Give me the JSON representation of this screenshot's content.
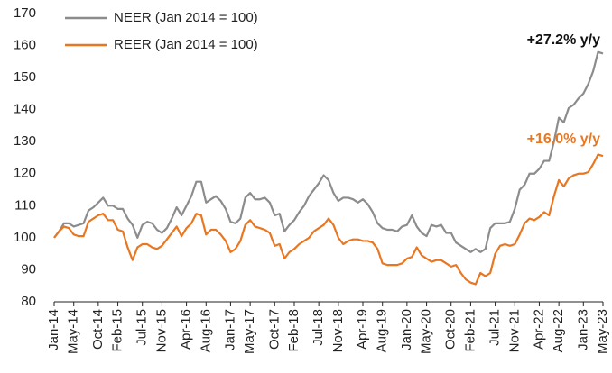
{
  "chart_data": {
    "type": "line",
    "categories": [
      "Jan-14",
      null,
      null,
      null,
      "May-14",
      null,
      null,
      null,
      null,
      "Oct-14",
      null,
      null,
      null,
      "Feb-15",
      null,
      null,
      null,
      null,
      "Jul-15",
      null,
      null,
      null,
      "Nov-15",
      null,
      null,
      null,
      null,
      "Apr-16",
      null,
      null,
      null,
      "Aug-16",
      null,
      null,
      null,
      null,
      "Jan-17",
      null,
      null,
      null,
      "May-17",
      null,
      null,
      null,
      null,
      "Oct-17",
      null,
      null,
      null,
      "Feb-18",
      null,
      null,
      null,
      null,
      "Jul-18",
      null,
      null,
      null,
      "Nov-18",
      null,
      null,
      null,
      null,
      "Apr-19",
      null,
      null,
      null,
      "Aug-19",
      null,
      null,
      null,
      null,
      "Jan-20",
      null,
      null,
      null,
      "May-20",
      null,
      null,
      null,
      null,
      "Oct-20",
      null,
      null,
      null,
      "Feb-21",
      null,
      null,
      null,
      null,
      "Jul-21",
      null,
      null,
      null,
      "Nov-21",
      null,
      null,
      null,
      null,
      "Apr-22",
      null,
      null,
      null,
      "Aug-22",
      null,
      null,
      null,
      null,
      "Jan-23",
      null,
      null,
      null,
      "May-23"
    ],
    "series": [
      {
        "name": "NEER (Jan 2014 = 100)",
        "color": "#8c8c8c",
        "values": [
          100,
          102,
          104.5,
          104.5,
          103.5,
          104,
          104.5,
          108.5,
          109.5,
          111,
          112.5,
          110,
          110,
          109,
          109,
          106,
          104,
          100,
          104,
          105,
          104.5,
          102.5,
          101.5,
          103,
          106,
          109.5,
          107,
          110,
          113,
          117.5,
          117.5,
          111,
          112,
          113,
          111.5,
          109,
          105,
          104.5,
          106,
          112.5,
          114,
          112,
          112,
          112.5,
          111,
          107,
          107.5,
          102,
          104,
          105.5,
          108,
          110,
          113,
          115,
          117,
          119.5,
          118,
          114,
          111.5,
          112.5,
          112.5,
          112,
          111,
          112,
          110.5,
          108,
          104.5,
          103,
          102.5,
          102.5,
          102,
          103.5,
          104,
          107,
          103.5,
          101.5,
          100.5,
          104,
          103.5,
          104,
          101.5,
          101.5,
          98.5,
          97.5,
          96.5,
          95.5,
          96.5,
          95.5,
          96.5,
          103,
          104.5,
          104.5,
          104.5,
          105,
          109,
          115,
          116.5,
          120,
          120,
          121.5,
          124,
          124,
          130,
          137.5,
          136,
          140.5,
          141.5,
          143.5,
          145,
          148,
          152,
          158,
          157.5
        ]
      },
      {
        "name": "REER (Jan 2014 = 100)",
        "color": "#e87722",
        "values": [
          100,
          102,
          103.5,
          103,
          101,
          100.5,
          100.5,
          105,
          106,
          107,
          107.5,
          105.5,
          105.5,
          102.5,
          102,
          97,
          93,
          97,
          98,
          98,
          97,
          96.5,
          97.5,
          99.5,
          101.5,
          103.5,
          100.5,
          103,
          104.5,
          107.5,
          107,
          101,
          102.5,
          102.5,
          101,
          99,
          95.5,
          96.5,
          99,
          104,
          105.5,
          103.5,
          103,
          102.5,
          101.5,
          97.5,
          98,
          93.5,
          95.5,
          96.5,
          98,
          99,
          100,
          102,
          103,
          104,
          106,
          104,
          100,
          98,
          99,
          99.5,
          99.5,
          99,
          99,
          98.5,
          96.5,
          92,
          91.5,
          91.5,
          91.5,
          92,
          93.5,
          94,
          97,
          94.5,
          93.5,
          92.5,
          93,
          93,
          92,
          91,
          91.5,
          89,
          87,
          86,
          85.5,
          89,
          88,
          89,
          95,
          97.5,
          98,
          97.5,
          98,
          101,
          104.5,
          106,
          105.5,
          106.5,
          108,
          107,
          113,
          118,
          116,
          118.5,
          119.5,
          120,
          120,
          120.5,
          123,
          126,
          125.5
        ]
      }
    ],
    "annotations": [
      {
        "text": "+27.2% y/y",
        "color": "#111111"
      },
      {
        "text": "+16.0% y/y",
        "color": "#e87722"
      }
    ],
    "ylim": [
      80,
      170
    ],
    "yticks": [
      80,
      90,
      100,
      110,
      120,
      130,
      140,
      150,
      160,
      170
    ],
    "legend": "top-left",
    "grid": false
  }
}
